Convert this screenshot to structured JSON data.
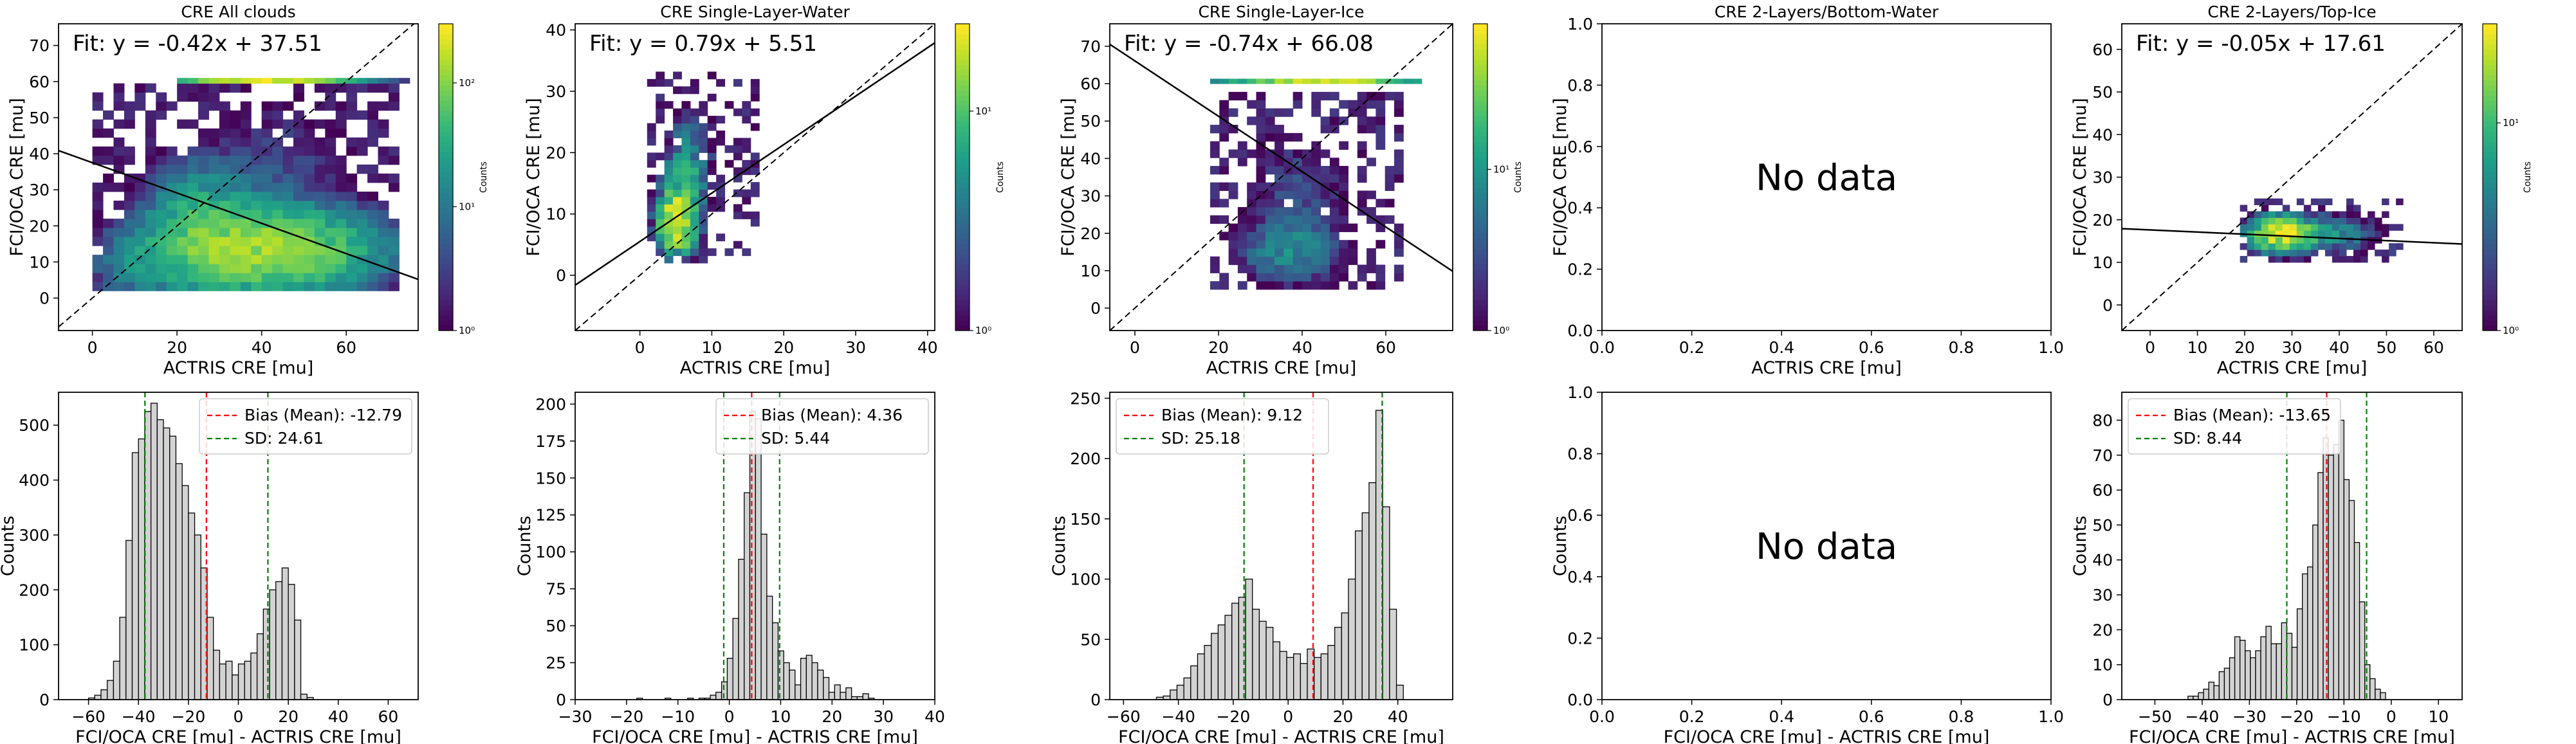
{
  "figure_title": "",
  "no_data_text": "No data",
  "chart_data": [
    {
      "id": "s1",
      "type": "heatmap",
      "title": "CRE All clouds",
      "xlabel": "ACTRIS CRE [mu]",
      "ylabel": "FCI/OCA CRE [mu]",
      "xlim": [
        -8,
        77
      ],
      "ylim": [
        -9,
        76
      ],
      "xticks": [
        0,
        20,
        40,
        60
      ],
      "yticks": [
        0,
        10,
        20,
        30,
        40,
        50,
        60,
        70
      ],
      "fit_label": "Fit: y = -0.42x + 37.51",
      "fit": {
        "slope": -0.42,
        "intercept": 37.51
      },
      "colorbar": {
        "label": "Counts",
        "log": true,
        "range": [
          1,
          300
        ],
        "ticks": [
          {
            "v": 1,
            "t": "10⁰"
          },
          {
            "v": 10,
            "t": "10¹"
          },
          {
            "v": 100,
            "t": "10²"
          }
        ]
      },
      "bins": 2.5,
      "blobs": [
        {
          "x": 40,
          "y": 12,
          "sx": 13,
          "sy": 6,
          "a": 130
        },
        {
          "x": 25,
          "y": 18,
          "sx": 7,
          "sy": 9,
          "a": 45
        },
        {
          "x": 10,
          "y": 8,
          "sx": 6,
          "sy": 6,
          "a": 14
        },
        {
          "x": 43,
          "y": 33,
          "sx": 9,
          "sy": 12,
          "a": 4
        }
      ],
      "region": {
        "x": [
          0,
          72
        ],
        "y": [
          2,
          58
        ]
      },
      "noise": 0.6,
      "row": {
        "y": 59.5,
        "x": [
          20,
          73
        ],
        "peak": 40,
        "width": 10,
        "amp": 250
      },
      "ceiling": 58
    },
    {
      "id": "s2",
      "type": "heatmap",
      "title": "CRE Single-Layer-Water",
      "xlabel": "ACTRIS CRE [mu]",
      "ylabel": "FCI/OCA CRE [mu]",
      "xlim": [
        -9,
        41
      ],
      "ylim": [
        -9,
        41
      ],
      "xticks": [
        0,
        10,
        20,
        30,
        40
      ],
      "yticks": [
        0,
        10,
        20,
        30,
        40
      ],
      "fit_label": "Fit: y = 0.79x + 5.51",
      "fit": {
        "slope": 0.79,
        "intercept": 5.51
      },
      "colorbar": {
        "label": "Counts",
        "log": true,
        "range": [
          1,
          25
        ],
        "ticks": [
          {
            "v": 1,
            "t": "10⁰"
          },
          {
            "v": 10,
            "t": "10¹"
          }
        ]
      },
      "bins": 1.2,
      "blobs": [
        {
          "x": 4.5,
          "y": 8,
          "sx": 1.6,
          "sy": 3,
          "a": 22
        },
        {
          "x": 5.5,
          "y": 14,
          "sx": 1.8,
          "sy": 5,
          "a": 6
        },
        {
          "x": 7,
          "y": 20,
          "sx": 2.5,
          "sy": 6,
          "a": 2
        }
      ],
      "region": {
        "x": [
          1,
          16
        ],
        "y": [
          2,
          32
        ]
      },
      "noise": 0.35,
      "row": null,
      "ceiling": 32
    },
    {
      "id": "s3",
      "type": "heatmap",
      "title": "CRE Single-Layer-Ice",
      "xlabel": "ACTRIS CRE [mu]",
      "ylabel": "FCI/OCA CRE [mu]",
      "xlim": [
        -6,
        76
      ],
      "ylim": [
        -6,
        76
      ],
      "xticks": [
        0,
        20,
        40,
        60
      ],
      "yticks": [
        0,
        10,
        20,
        30,
        40,
        50,
        60,
        70
      ],
      "fit_label": "Fit: y = -0.74x + 66.08",
      "fit": {
        "slope": -0.74,
        "intercept": 66.08
      },
      "colorbar": {
        "label": "Counts",
        "log": true,
        "range": [
          1,
          80
        ],
        "ticks": [
          {
            "v": 1,
            "t": "10⁰"
          },
          {
            "v": 10,
            "t": "10¹"
          }
        ]
      },
      "bins": 2.2,
      "blobs": [
        {
          "x": 36,
          "y": 14,
          "sx": 7,
          "sy": 5,
          "a": 8
        },
        {
          "x": 38,
          "y": 30,
          "sx": 8,
          "sy": 10,
          "a": 3
        }
      ],
      "region": {
        "x": [
          18,
          64
        ],
        "y": [
          5,
          56
        ]
      },
      "noise": 0.55,
      "row": {
        "y": 60,
        "x": [
          18,
          67
        ],
        "peak": 44,
        "width": 12,
        "amp": 60
      },
      "ceiling": 56
    },
    {
      "id": "s4",
      "type": "scatter",
      "title": "CRE 2-Layers/Bottom-Water",
      "xlabel": "ACTRIS CRE [mu]",
      "ylabel": "FCI/OCA CRE [mu]",
      "xlim": [
        0,
        1
      ],
      "ylim": [
        0,
        1
      ],
      "xticks": [
        0.0,
        0.2,
        0.4,
        0.6,
        0.8,
        1.0
      ],
      "yticks": [
        0.0,
        0.2,
        0.4,
        0.6,
        0.8,
        1.0
      ],
      "empty": true
    },
    {
      "id": "s5",
      "type": "heatmap",
      "title": "CRE 2-Layers/Top-Ice",
      "xlabel": "ACTRIS CRE [mu]",
      "ylabel": "FCI/OCA CRE [mu]",
      "xlim": [
        -6,
        66
      ],
      "ylim": [
        -6,
        66
      ],
      "xticks": [
        0,
        10,
        20,
        30,
        40,
        50,
        60
      ],
      "yticks": [
        0,
        10,
        20,
        30,
        40,
        50,
        60
      ],
      "fit_label": "Fit: y = -0.05x + 17.61",
      "fit": {
        "slope": -0.05,
        "intercept": 17.61
      },
      "colorbar": {
        "label": "Counts",
        "log": true,
        "range": [
          1,
          30
        ],
        "ticks": [
          {
            "v": 1,
            "t": "10⁰"
          },
          {
            "v": 10,
            "t": "10¹"
          }
        ]
      },
      "bins": 1.5,
      "blobs": [
        {
          "x": 27,
          "y": 16,
          "sx": 4,
          "sy": 2.5,
          "a": 25
        },
        {
          "x": 38,
          "y": 16,
          "sx": 6,
          "sy": 3,
          "a": 5
        }
      ],
      "region": {
        "x": [
          19,
          53
        ],
        "y": [
          10,
          24
        ]
      },
      "noise": 0.5,
      "row": null,
      "ceiling": 24
    },
    {
      "id": "h1",
      "type": "bar",
      "xlabel": "FCI/OCA CRE [mu] - ACTRIS CRE [mu]",
      "ylabel": "Counts",
      "xlim": [
        -72,
        72
      ],
      "ylim": [
        0,
        560
      ],
      "xticks": [
        -60,
        -40,
        -20,
        0,
        20,
        40,
        60
      ],
      "yticks": [
        0,
        100,
        200,
        300,
        400,
        500
      ],
      "bin_start": -60,
      "bin_width": 2.5,
      "values": [
        3,
        8,
        18,
        35,
        70,
        150,
        290,
        450,
        475,
        525,
        540,
        510,
        495,
        480,
        430,
        390,
        340,
        300,
        240,
        150,
        90,
        65,
        70,
        45,
        65,
        70,
        85,
        120,
        165,
        200,
        215,
        240,
        210,
        145,
        10,
        4
      ],
      "bias": -12.79,
      "sd": 24.61,
      "legend": {
        "bias": "Bias (Mean): -12.79",
        "sd": "SD: 24.61",
        "pos": "upper right"
      }
    },
    {
      "id": "h2",
      "type": "bar",
      "xlabel": "FCI/OCA CRE [mu] - ACTRIS CRE [mu]",
      "ylabel": "Counts",
      "xlim": [
        -30,
        40
      ],
      "ylim": [
        0,
        208
      ],
      "xticks": [
        -30,
        -20,
        -10,
        0,
        10,
        20,
        30,
        40
      ],
      "yticks": [
        0,
        25,
        50,
        75,
        100,
        125,
        150,
        175,
        200
      ],
      "bin_start": -18,
      "bin_width": 1.1,
      "values": [
        1,
        0,
        0,
        0,
        0,
        1,
        0,
        0,
        0,
        1,
        0,
        1,
        1,
        3,
        5,
        12,
        28,
        55,
        95,
        140,
        195,
        190,
        112,
        70,
        52,
        33,
        25,
        20,
        10,
        28,
        30,
        25,
        20,
        15,
        5,
        10,
        5,
        8,
        2,
        2,
        4,
        1
      ],
      "bias": 4.36,
      "sd": 5.44,
      "legend": {
        "bias": "Bias (Mean): 4.36",
        "sd": "SD: 5.44",
        "pos": "upper right"
      }
    },
    {
      "id": "h3",
      "type": "bar",
      "xlabel": "FCI/OCA CRE [mu] - ACTRIS CRE [mu]",
      "ylabel": "Counts",
      "xlim": [
        -65,
        60
      ],
      "ylim": [
        0,
        255
      ],
      "xticks": [
        -60,
        -40,
        -20,
        0,
        20,
        40
      ],
      "yticks": [
        0,
        50,
        100,
        150,
        200,
        250
      ],
      "bin_start": -48,
      "bin_width": 2.5,
      "values": [
        2,
        3,
        8,
        12,
        18,
        28,
        38,
        45,
        55,
        62,
        70,
        80,
        85,
        100,
        75,
        65,
        60,
        48,
        40,
        35,
        38,
        30,
        42,
        35,
        38,
        45,
        60,
        72,
        100,
        140,
        155,
        180,
        240,
        160,
        75,
        12
      ],
      "bias": 9.12,
      "sd": 25.18,
      "legend": {
        "bias": "Bias (Mean): 9.12",
        "sd": "SD: 25.18",
        "pos": "upper left"
      }
    },
    {
      "id": "h4",
      "type": "bar",
      "xlabel": "FCI/OCA CRE [mu] - ACTRIS CRE [mu]",
      "ylabel": "Counts",
      "xlim": [
        0,
        1
      ],
      "ylim": [
        0,
        1
      ],
      "xticks": [
        0.0,
        0.2,
        0.4,
        0.6,
        0.8,
        1.0
      ],
      "yticks": [
        0.0,
        0.2,
        0.4,
        0.6,
        0.8,
        1.0
      ],
      "empty": true
    },
    {
      "id": "h5",
      "type": "bar",
      "xlabel": "FCI/OCA CRE [mu] - ACTRIS CRE [mu]",
      "ylabel": "Counts",
      "xlim": [
        -57,
        15
      ],
      "ylim": [
        0,
        88
      ],
      "xticks": [
        -50,
        -40,
        -30,
        -20,
        -10,
        0,
        10
      ],
      "yticks": [
        0,
        10,
        20,
        30,
        40,
        50,
        60,
        70,
        80
      ],
      "bin_start": -43,
      "bin_width": 1.1,
      "values": [
        1,
        1,
        2,
        3,
        5,
        4,
        8,
        9,
        12,
        18,
        17,
        14,
        12,
        14,
        18,
        21,
        16,
        16,
        22,
        19,
        15,
        26,
        36,
        38,
        50,
        65,
        75,
        70,
        73,
        80,
        63,
        57,
        45,
        28,
        10,
        6,
        3,
        2
      ],
      "bias": -13.65,
      "sd": 8.44,
      "legend": {
        "bias": "Bias (Mean): -13.65",
        "sd": "SD: 8.44",
        "pos": "upper left"
      }
    }
  ]
}
